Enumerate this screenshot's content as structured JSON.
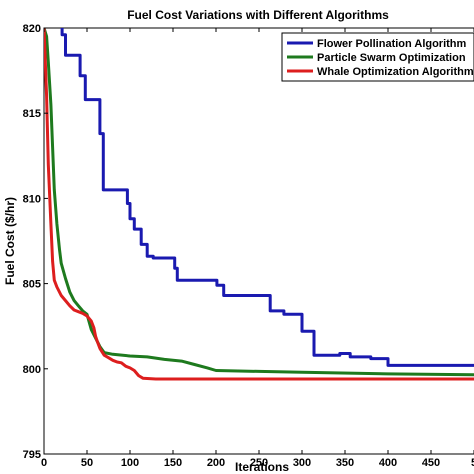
{
  "chart_data": {
    "type": "line",
    "title": "Fuel Cost Variations with Different Algorithms",
    "xlabel": "Iterations",
    "ylabel": "Fuel Cost ($/hr)",
    "xlim": [
      0,
      500
    ],
    "ylim": [
      795,
      820
    ],
    "xticks": [
      "0",
      "50",
      "100",
      "150",
      "200",
      "250",
      "300",
      "350",
      "400",
      "450",
      "5"
    ],
    "yticks": [
      "795",
      "800",
      "805",
      "810",
      "815",
      "820"
    ],
    "grid": false,
    "legend_position": "top-right",
    "series": [
      {
        "name": "Flower Pollination Algorithm",
        "color": "#1a1ab0",
        "x": [
          21,
          21,
          25,
          25,
          42,
          42,
          48,
          48,
          65,
          65,
          69,
          69,
          97,
          97,
          100,
          100,
          105,
          105,
          113,
          113,
          120,
          120,
          127,
          127,
          152,
          152,
          155,
          155,
          201,
          201,
          209,
          209,
          263,
          263,
          279,
          279,
          300,
          300,
          314,
          314,
          344,
          344,
          356,
          356,
          380,
          380,
          400,
          400,
          500
        ],
        "y": [
          820,
          819.6,
          819.6,
          818.4,
          818.4,
          817.2,
          817.2,
          815.8,
          815.8,
          813.8,
          813.8,
          810.5,
          810.5,
          809.7,
          809.7,
          808.8,
          808.8,
          808.2,
          808.2,
          807.3,
          807.3,
          806.6,
          806.6,
          806.5,
          806.5,
          805.9,
          805.9,
          805.2,
          805.2,
          804.9,
          804.9,
          804.3,
          804.3,
          803.4,
          803.4,
          803.2,
          803.2,
          802.2,
          802.2,
          800.8,
          800.8,
          800.9,
          800.9,
          800.7,
          800.7,
          800.6,
          800.6,
          800.2,
          800.2
        ]
      },
      {
        "name": "Particle Swarm Optimization",
        "color": "#1e7a1e",
        "x": [
          0,
          3,
          5,
          8,
          10,
          12,
          15,
          18,
          20,
          25,
          30,
          35,
          40,
          45,
          50,
          55,
          60,
          65,
          70,
          80,
          100,
          120,
          140,
          160,
          175,
          190,
          200,
          250,
          300,
          400,
          500
        ],
        "y": [
          820,
          819.5,
          818,
          815.5,
          813,
          810.5,
          808.5,
          807,
          806.2,
          805.3,
          804.5,
          804,
          803.7,
          803.4,
          803.2,
          802.3,
          801.8,
          801.3,
          800.95,
          800.85,
          800.75,
          800.7,
          800.55,
          800.45,
          800.25,
          800.05,
          799.9,
          799.85,
          799.8,
          799.7,
          799.65
        ]
      },
      {
        "name": "Whale Optimization Algorithm",
        "color": "#dd1e1e",
        "x": [
          0,
          3,
          5,
          8,
          10,
          12,
          15,
          20,
          25,
          30,
          35,
          40,
          45,
          50,
          55,
          58,
          60,
          62,
          65,
          70,
          75,
          80,
          85,
          90,
          95,
          100,
          105,
          110,
          115,
          130,
          200,
          300,
          400,
          500
        ],
        "y": [
          820,
          816,
          812,
          808.5,
          806.3,
          805.2,
          804.8,
          804.3,
          804,
          803.7,
          803.45,
          803.35,
          803.25,
          803.1,
          802.8,
          802.4,
          801.9,
          801.6,
          801.2,
          800.8,
          800.65,
          800.5,
          800.4,
          800.35,
          800.15,
          800.05,
          799.9,
          799.6,
          799.45,
          799.4,
          799.4,
          799.4,
          799.4,
          799.4
        ]
      }
    ]
  }
}
